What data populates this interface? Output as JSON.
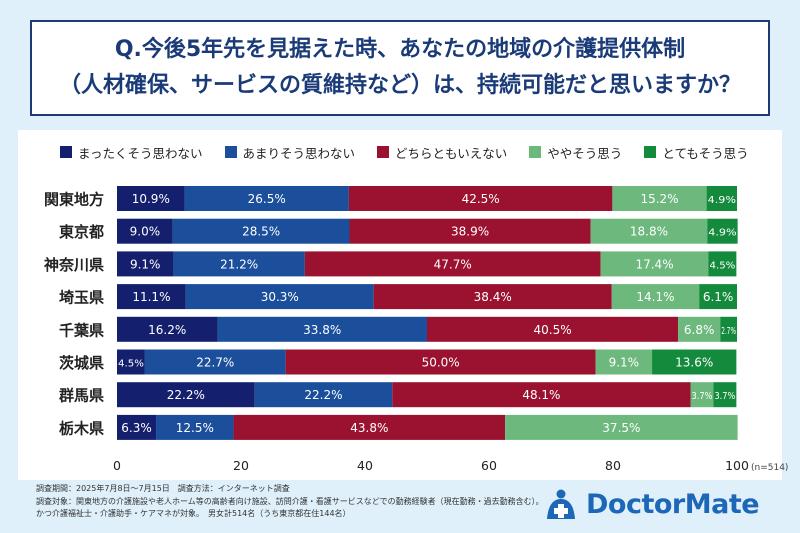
{
  "title": {
    "line1": "Q.今後5年先を見据えた時、あなたの地域の介護提供体制",
    "line2": "（人材確保、サービスの質維持など）は、持続可能だと思いますか？"
  },
  "legend": [
    {
      "label": "まったくそう思わない",
      "color": "#14206e"
    },
    {
      "label": "あまりそう思わない",
      "color": "#1b4e9b"
    },
    {
      "label": "どちらともいえない",
      "color": "#9b1230"
    },
    {
      "label": "ややそう思う",
      "color": "#6db87c"
    },
    {
      "label": "とてもそう思う",
      "color": "#138a3c"
    }
  ],
  "chart_data": {
    "type": "bar",
    "orientation": "horizontal",
    "stacked": true,
    "categories": [
      "関東地方",
      "東京都",
      "神奈川県",
      "埼玉県",
      "千葉県",
      "茨城県",
      "群馬県",
      "栃木県"
    ],
    "series": [
      {
        "name": "まったくそう思わない",
        "values": [
          10.9,
          9.0,
          9.1,
          11.1,
          16.2,
          4.5,
          22.2,
          6.3
        ]
      },
      {
        "name": "あまりそう思わない",
        "values": [
          26.5,
          28.5,
          21.2,
          30.3,
          33.8,
          22.7,
          22.2,
          12.5
        ]
      },
      {
        "name": "どちらともいえない",
        "values": [
          42.5,
          38.9,
          47.7,
          38.4,
          40.5,
          50.0,
          48.1,
          43.8
        ]
      },
      {
        "name": "ややそう思う",
        "values": [
          15.2,
          18.8,
          17.4,
          14.1,
          6.8,
          9.1,
          3.7,
          37.5
        ]
      },
      {
        "name": "とてもそう思う",
        "values": [
          4.9,
          4.9,
          4.5,
          6.1,
          2.7,
          13.6,
          3.7,
          0
        ]
      }
    ],
    "xlim": [
      0,
      100
    ],
    "xticks": [
      0,
      20,
      40,
      60,
      80,
      100
    ],
    "note": "(n=514)",
    "value_suffix": "%"
  },
  "footer": {
    "line1": "調査期間：2025年7月8日〜7月15日　調査方法：インターネット調査",
    "line2": "調査対象：関東地方の介護施設や老人ホーム等の高齢者向け施設、訪問介護・看護サービスなどでの勤務経験者（現在勤務・過去勤務含む）。",
    "line3": "かつ介護福祉士・介護助手・ケアマネが対象。　男女計514名（うち東京都在住144名）"
  },
  "logo": {
    "text": "DoctorMate",
    "color": "#1d67b8"
  }
}
